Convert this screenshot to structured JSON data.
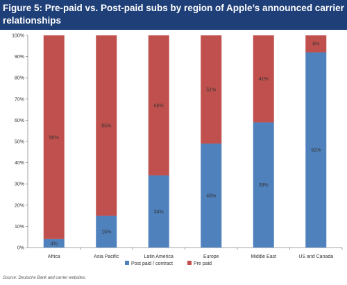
{
  "title": "Figure 5: Pre-paid vs. Post-paid subs by region of Apple’s announced carrier relationships",
  "source": "Source: Deutsche Bank and carrier websites.",
  "colors": {
    "post_paid": "#4f81bd",
    "pre_paid": "#c0504d",
    "title_bg": "#1f3f78"
  },
  "chart_data": {
    "type": "bar",
    "stacked": true,
    "categories": [
      "Africa",
      "Asia Pacific",
      "Latin America",
      "Europe",
      "Middle East",
      "US and Canada"
    ],
    "series": [
      {
        "name": "Post paid / contract",
        "values": [
          4,
          15,
          34,
          49,
          59,
          92
        ],
        "labels": [
          "4%",
          "15%",
          "34%",
          "49%",
          "59%",
          "92%"
        ]
      },
      {
        "name": "Pre paid",
        "values": [
          96,
          85,
          66,
          51,
          41,
          8
        ],
        "labels": [
          "96%",
          "85%",
          "66%",
          "51%",
          "41%",
          "8%"
        ]
      }
    ],
    "y_ticks": [
      "0%",
      "10%",
      "20%",
      "30%",
      "40%",
      "50%",
      "60%",
      "70%",
      "80%",
      "90%",
      "100%"
    ],
    "ylim": [
      0,
      100
    ],
    "grid": false,
    "legend": "bottom"
  }
}
